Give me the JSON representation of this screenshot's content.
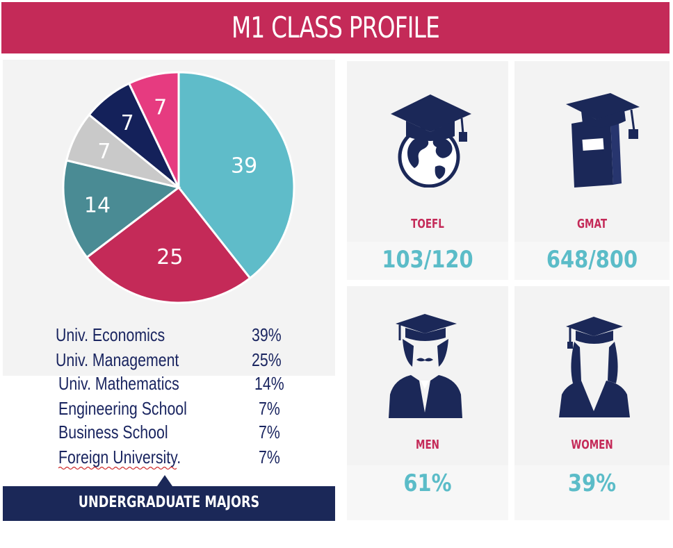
{
  "header": {
    "title": "M1 CLASS PROFILE"
  },
  "chart_data": {
    "type": "pie",
    "categories": [
      "Univ. Economics",
      "Univ. Management",
      "Univ. Mathematics",
      "Engineering School",
      "Business School",
      "Foreign University."
    ],
    "values": [
      39,
      25,
      14,
      7,
      7,
      7
    ],
    "slice_labels": [
      "39",
      "25",
      "14",
      "7",
      "7",
      "7"
    ],
    "colors": [
      "#5fbcc9",
      "#c42a58",
      "#4a8b94",
      "#c9c9c9",
      "#14215a",
      "#e63b80"
    ]
  },
  "legend": [
    {
      "name": "Univ. Economics",
      "pct": "39%"
    },
    {
      "name": "Univ. Management",
      "pct": "25%"
    },
    {
      "name": "Univ. Mathematics",
      "pct": "14%"
    },
    {
      "name": "Engineering School",
      "pct": "7%"
    },
    {
      "name": "Business School",
      "pct": "7%"
    },
    {
      "name": "Foreign University.",
      "pct": "7%"
    }
  ],
  "footer": {
    "title": "UNDERGRADUATE MAJORS"
  },
  "cards": {
    "toefl": {
      "label": "TOEFL",
      "value": "103/120",
      "icon": "globe-graduation-cap-icon"
    },
    "gmat": {
      "label": "GMAT",
      "value": "648/800",
      "icon": "book-graduation-cap-icon"
    },
    "men": {
      "label": "MEN",
      "value": "61%",
      "icon": "male-graduate-icon"
    },
    "women": {
      "label": "WOMEN",
      "value": "39%",
      "icon": "female-graduate-icon"
    }
  },
  "colors": {
    "accent": "#c42a58",
    "navy": "#1b2858",
    "teal": "#5bbcc8",
    "panel": "#f3f3f3"
  }
}
